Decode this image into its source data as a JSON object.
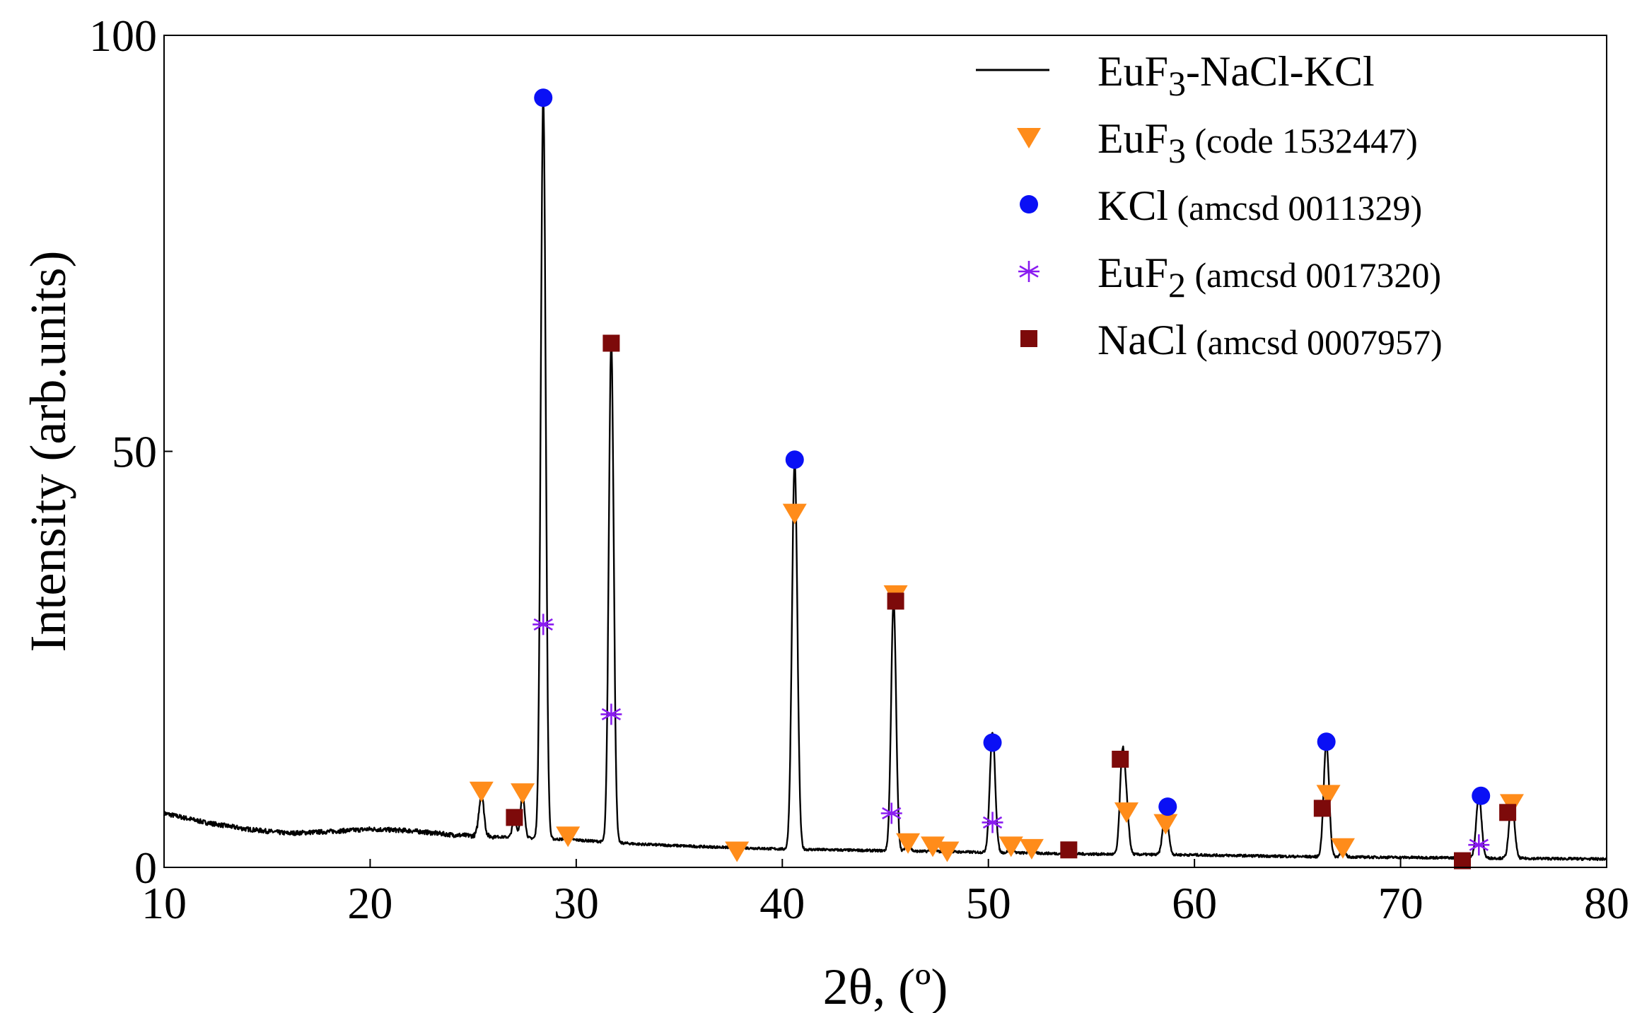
{
  "chart_data": {
    "type": "line",
    "title": "",
    "xlabel": "2θ, (º)",
    "ylabel": "Intensity (arb.units)",
    "xlim": [
      10,
      80
    ],
    "ylim": [
      0,
      100
    ],
    "xticks": [
      "10",
      "20",
      "30",
      "40",
      "50",
      "60",
      "70",
      "80"
    ],
    "yticks": [
      "0",
      "50",
      "100"
    ],
    "grid": false,
    "legend_position": "top-right",
    "legend": [
      {
        "key": "pattern",
        "main": "EuF",
        "sub": "3",
        "rest": "-NaCl-KCl",
        "note": "",
        "marker": "line",
        "color": "#000000"
      },
      {
        "key": "euf3",
        "main": "EuF",
        "sub": "3",
        "rest": "",
        "note": " (code 1532447)",
        "marker": "triangle-down",
        "color": "#ff8c1a"
      },
      {
        "key": "kcl",
        "main": "KCl",
        "sub": "",
        "rest": "",
        "note": " (amcsd 0011329)",
        "marker": "circle",
        "color": "#0a10f5"
      },
      {
        "key": "euf2",
        "main": "EuF",
        "sub": "2",
        "rest": "",
        "note": " (amcsd 0017320)",
        "marker": "asterisk",
        "color": "#8a1cf0"
      },
      {
        "key": "nacl",
        "main": "NaCl",
        "sub": "",
        "rest": "",
        "note": " (amcsd 0007957)",
        "marker": "square",
        "color": "#7d0a0a"
      }
    ],
    "series": [
      {
        "name": "EuF3-NaCl-KCl",
        "color": "#000000",
        "background": [
          [
            10,
            6.5
          ],
          [
            12,
            5.4
          ],
          [
            14,
            4.6
          ],
          [
            16,
            4.1
          ],
          [
            18,
            4.3
          ],
          [
            20,
            4.6
          ],
          [
            22,
            4.4
          ],
          [
            24,
            3.9
          ],
          [
            27,
            3.6
          ],
          [
            30,
            3.3
          ],
          [
            33,
            2.8
          ],
          [
            36,
            2.5
          ],
          [
            40,
            2.2
          ],
          [
            45,
            2.0
          ],
          [
            50,
            1.8
          ],
          [
            55,
            1.6
          ],
          [
            60,
            1.5
          ],
          [
            65,
            1.3
          ],
          [
            70,
            1.2
          ],
          [
            75,
            1.1
          ],
          [
            80,
            1.0
          ]
        ],
        "peaks": [
          {
            "x": 25.4,
            "y": 8.8,
            "w": 0.12
          },
          {
            "x": 27.0,
            "y": 5.8,
            "w": 0.1
          },
          {
            "x": 27.4,
            "y": 8.8,
            "w": 0.1
          },
          {
            "x": 28.4,
            "y": 92.5,
            "w": 0.12
          },
          {
            "x": 29.6,
            "y": 3.8,
            "w": 0.12
          },
          {
            "x": 31.7,
            "y": 63.0,
            "w": 0.12
          },
          {
            "x": 37.8,
            "y": 2.2,
            "w": 0.12
          },
          {
            "x": 40.6,
            "y": 48.8,
            "w": 0.13
          },
          {
            "x": 45.4,
            "y": 32.0,
            "w": 0.12
          },
          {
            "x": 46.1,
            "y": 3.2,
            "w": 0.1
          },
          {
            "x": 47.3,
            "y": 2.6,
            "w": 0.1
          },
          {
            "x": 48.0,
            "y": 2.0,
            "w": 0.1
          },
          {
            "x": 50.2,
            "y": 16.2,
            "w": 0.13
          },
          {
            "x": 51.1,
            "y": 2.6,
            "w": 0.1
          },
          {
            "x": 52.1,
            "y": 2.3,
            "w": 0.1
          },
          {
            "x": 53.9,
            "y": 2.1,
            "w": 0.1
          },
          {
            "x": 56.5,
            "y": 13.0,
            "w": 0.12
          },
          {
            "x": 56.7,
            "y": 6.5,
            "w": 0.12
          },
          {
            "x": 58.6,
            "y": 7.2,
            "w": 0.13
          },
          {
            "x": 66.4,
            "y": 15.0,
            "w": 0.13
          },
          {
            "x": 67.2,
            "y": 2.4,
            "w": 0.1
          },
          {
            "x": 73.8,
            "y": 8.6,
            "w": 0.13
          },
          {
            "x": 75.4,
            "y": 8.0,
            "w": 0.13
          }
        ]
      }
    ],
    "reference_markers": {
      "euf3": [
        [
          25.4,
          9.2
        ],
        [
          27.4,
          9.0
        ],
        [
          29.6,
          3.8
        ],
        [
          37.8,
          2.0
        ],
        [
          40.6,
          42.6
        ],
        [
          45.5,
          32.8
        ],
        [
          46.1,
          3.0
        ],
        [
          47.3,
          2.6
        ],
        [
          48.0,
          2.0
        ],
        [
          51.1,
          2.6
        ],
        [
          52.1,
          2.3
        ],
        [
          56.7,
          6.7
        ],
        [
          58.6,
          5.3
        ],
        [
          66.5,
          8.8
        ],
        [
          67.2,
          2.4
        ],
        [
          75.4,
          7.7
        ]
      ],
      "kcl": [
        [
          28.4,
          92.5
        ],
        [
          40.6,
          49.0
        ],
        [
          50.2,
          15.0
        ],
        [
          58.7,
          7.3
        ],
        [
          66.4,
          15.1
        ],
        [
          73.9,
          8.6
        ]
      ],
      "euf2": [
        [
          28.4,
          29.2
        ],
        [
          31.7,
          18.4
        ],
        [
          45.3,
          6.5
        ],
        [
          50.2,
          5.4
        ],
        [
          73.8,
          2.7
        ]
      ],
      "nacl": [
        [
          27.0,
          6.0
        ],
        [
          31.7,
          63.0
        ],
        [
          45.5,
          32.0
        ],
        [
          53.9,
          2.1
        ],
        [
          56.4,
          13.0
        ],
        [
          66.2,
          7.1
        ],
        [
          73.0,
          0.8
        ],
        [
          75.2,
          6.6
        ]
      ]
    }
  }
}
